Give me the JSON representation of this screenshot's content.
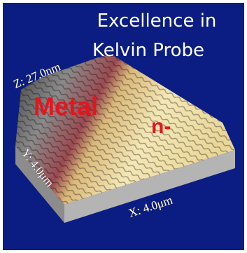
{
  "title": {
    "line1": "Excellence in",
    "line2": "Kelvin Probe"
  },
  "axes": {
    "z": "Z: 27.0nm",
    "y": "Y: 4.0μm",
    "x": "X: 4.0μm"
  },
  "regions": {
    "metal": "Metal",
    "n": "n-"
  }
}
